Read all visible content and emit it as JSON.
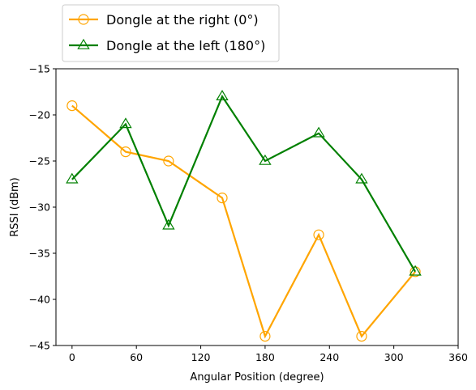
{
  "chart_data": {
    "type": "line",
    "xlabel": "Angular Position (degree)",
    "ylabel": "RSSI (dBm)",
    "xlim": [
      -15,
      360
    ],
    "ylim": [
      -45,
      -15
    ],
    "xticks": [
      0,
      60,
      120,
      180,
      240,
      300,
      360
    ],
    "yticks": [
      -15,
      -20,
      -25,
      -30,
      -35,
      -40,
      -45
    ],
    "grid": false,
    "legend_position": "top-left (above plot)",
    "series": [
      {
        "name": "Dongle at the right (0°)",
        "color": "#ffa500",
        "marker": "circle",
        "x": [
          0,
          50,
          90,
          140,
          180,
          230,
          270,
          320
        ],
        "y": [
          -19,
          -24,
          -25,
          -29,
          -44,
          -33,
          -44,
          -37
        ]
      },
      {
        "name": "Dongle at the left (180°)",
        "color": "#008000",
        "marker": "triangle",
        "x": [
          0,
          50,
          90,
          140,
          180,
          230,
          270,
          320
        ],
        "y": [
          -27,
          -21,
          -32,
          -18,
          -25,
          -22,
          -27,
          -37
        ]
      }
    ]
  }
}
